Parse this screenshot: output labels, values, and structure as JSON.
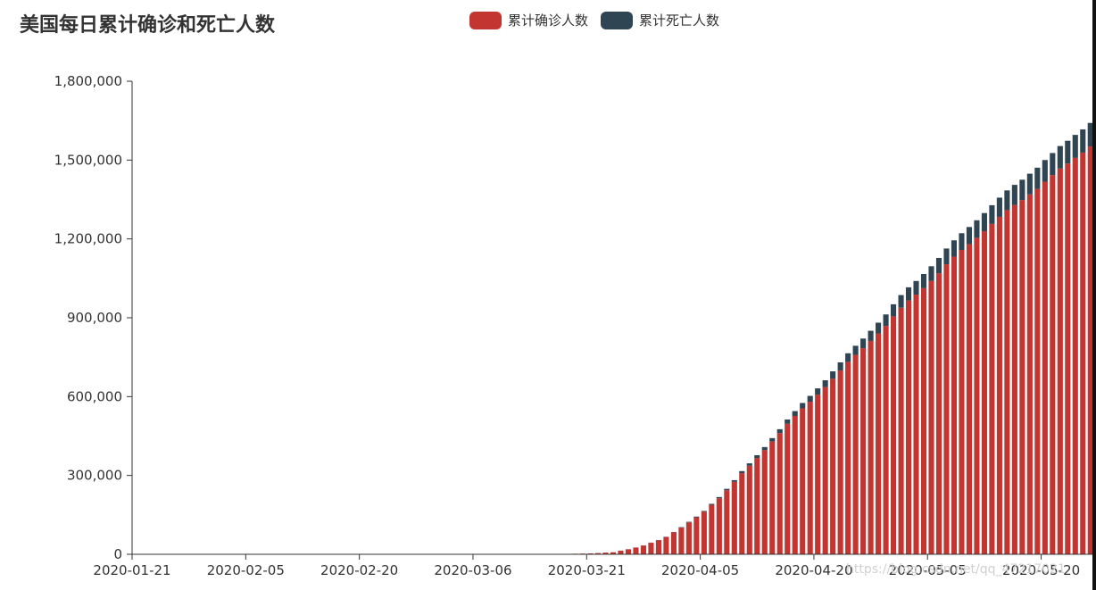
{
  "chart_data": {
    "type": "bar",
    "stacked": true,
    "title": "美国每日累计确诊和死亡人数",
    "legend_position": "top-center",
    "x_start": "2020-01-21",
    "x_end": "2020-05-27",
    "x_ticks": [
      "2020-01-21",
      "2020-02-05",
      "2020-02-20",
      "2020-03-06",
      "2020-03-21",
      "2020-04-05",
      "2020-04-20",
      "2020-05-05",
      "2020-05-20"
    ],
    "ylim": [
      0,
      1800000
    ],
    "y_ticks": [
      "0",
      "300,000",
      "600,000",
      "900,000",
      "1,200,000",
      "1,500,000",
      "1,800,000"
    ],
    "y_tick_values": [
      0,
      300000,
      600000,
      900000,
      1200000,
      1500000,
      1800000
    ],
    "grid": false,
    "series": [
      {
        "name": "累计确诊人数",
        "color": "#c23531",
        "values": [
          1,
          1,
          1,
          2,
          5,
          5,
          5,
          5,
          5,
          5,
          5,
          7,
          8,
          11,
          11,
          11,
          11,
          11,
          11,
          11,
          12,
          12,
          12,
          12,
          13,
          13,
          14,
          15,
          15,
          15,
          15,
          15,
          15,
          15,
          15,
          15,
          15,
          25,
          25,
          25,
          51,
          51,
          57,
          58,
          60,
          68,
          74,
          98,
          118,
          149,
          217,
          262,
          402,
          518,
          583,
          959,
          1281,
          1663,
          2179,
          2727,
          3499,
          4632,
          6421,
          7783,
          13677,
          19100,
          25489,
          33276,
          43847,
          53740,
          65778,
          83836,
          101657,
          121465,
          140909,
          161831,
          188172,
          213372,
          243762,
          275586,
          308853,
          337072,
          366667,
          396223,
          429052,
          461437,
          496535,
          526396,
          555313,
          580619,
          607670,
          636350,
          667801,
          699706,
          732197,
          758809,
          784326,
          811865,
          840351,
          869170,
          905358,
          938154,
          965785,
          988197,
          1012582,
          1039909,
          1069424,
          1103461,
          1132539,
          1158040,
          1180375,
          1204351,
          1229331,
          1257023,
          1283929,
          1309550,
          1329260,
          1347881,
          1369376,
          1390406,
          1417774,
          1442824,
          1467820,
          1486757,
          1508308,
          1528568,
          1551853
        ]
      },
      {
        "name": "累计死亡人数",
        "color": "#2f4554",
        "values": [
          0,
          0,
          0,
          0,
          0,
          0,
          0,
          0,
          0,
          0,
          0,
          0,
          0,
          0,
          0,
          0,
          0,
          0,
          0,
          0,
          0,
          0,
          0,
          0,
          0,
          0,
          0,
          0,
          0,
          0,
          0,
          0,
          0,
          0,
          0,
          0,
          0,
          0,
          0,
          0,
          0,
          0,
          0,
          0,
          1,
          1,
          2,
          6,
          9,
          11,
          12,
          15,
          19,
          22,
          26,
          30,
          38,
          41,
          48,
          58,
          70,
          86,
          108,
          134,
          199,
          258,
          337,
          419,
          565,
          743,
          983,
          1225,
          1604,
          2161,
          2561,
          3153,
          3795,
          4506,
          5350,
          6495,
          7758,
          9008,
          10423,
          11788,
          13035,
          14522,
          16405,
          18441,
          20405,
          22096,
          23659,
          25780,
          28305,
          30640,
          32729,
          34660,
          36599,
          38655,
          40968,
          43450,
          45912,
          48169,
          50156,
          51745,
          53862,
          56047,
          58211,
          60089,
          62048,
          63654,
          64906,
          66543,
          69036,
          71229,
          73205,
          75015,
          76388,
          77459,
          78830,
          80682,
          82440,
          84064,
          85567,
          86717,
          87484,
          88216,
          89491
        ]
      }
    ]
  },
  "watermark": "https://blog.csdn.net/qq_47217021"
}
